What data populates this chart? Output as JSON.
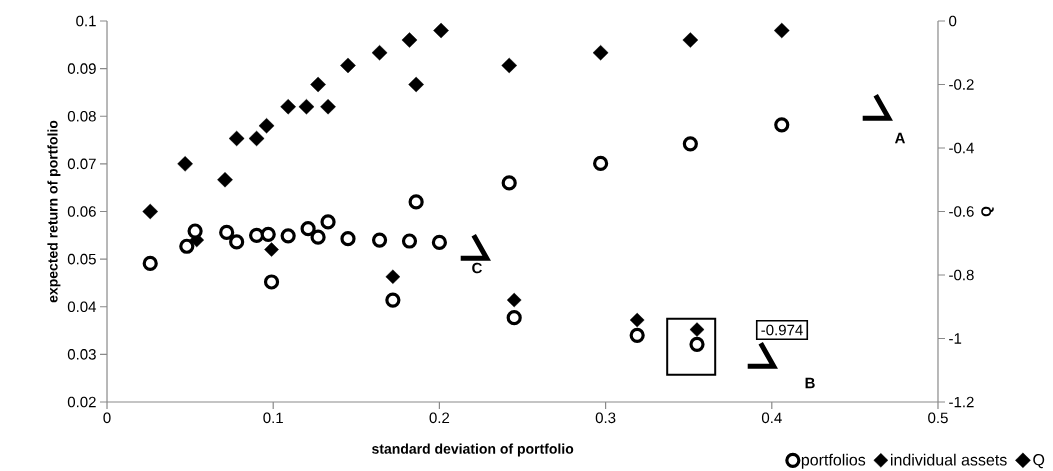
{
  "chart_data": {
    "type": "scatter",
    "xlabel": "standard deviation of portfolio",
    "ylabel": "expected return of portfolio",
    "y2label": "Q",
    "xlim": [
      0,
      0.5
    ],
    "xticks": [
      0,
      0.1,
      0.2,
      0.3,
      0.4,
      0.5
    ],
    "ylim": [
      0.02,
      0.1
    ],
    "yticks": [
      0.02,
      0.03,
      0.04,
      0.05,
      0.06,
      0.07,
      0.08,
      0.09,
      0.1
    ],
    "y2lim": [
      -1.2,
      0
    ],
    "y2ticks": [
      -1.2,
      -1,
      -0.8,
      -0.6,
      -0.4,
      -0.2,
      0
    ],
    "legend": "bottom right",
    "annotations": [
      "A",
      "B",
      "C",
      "-0.974"
    ],
    "series": [
      {
        "name": "portfolios",
        "color": "#000000",
        "marker": "circle",
        "x": [
          0.026,
          0.048,
          0.053,
          0.072,
          0.078,
          0.09,
          0.097,
          0.099,
          0.109,
          0.121,
          0.127,
          0.133,
          0.145,
          0.164,
          0.182,
          0.2,
          0.172,
          0.245,
          0.186,
          0.242,
          0.297,
          0.351,
          0.406,
          0.319,
          0.355
        ],
        "values": [
          0.0491,
          0.0527,
          0.0559,
          0.0556,
          0.0536,
          0.055,
          0.0552,
          0.0452,
          0.0549,
          0.0564,
          0.0546,
          0.0578,
          0.0543,
          0.054,
          0.0538,
          0.0535,
          0.0414,
          0.0377,
          0.062,
          0.066,
          0.0701,
          0.0742,
          0.0782,
          0.034,
          0.0321
        ]
      },
      {
        "name": "individual assets",
        "color": "#000000",
        "marker": "diamond",
        "x": [
          0.054,
          0.099,
          0.172,
          0.245,
          0.319,
          0.355
        ],
        "values": [
          0.054,
          0.052,
          0.0463,
          0.0414,
          0.0372,
          0.0352
        ]
      },
      {
        "name": "Q",
        "color": "#000000",
        "marker": "diamond",
        "axis": "y2",
        "x": [
          0.026,
          0.047,
          0.071,
          0.078,
          0.09,
          0.096,
          0.109,
          0.12,
          0.127,
          0.133,
          0.145,
          0.164,
          0.182,
          0.186,
          0.201,
          0.242,
          0.297,
          0.351,
          0.406
        ],
        "values": [
          -0.6,
          -0.45,
          -0.5,
          -0.37,
          -0.37,
          -0.33,
          -0.27,
          -0.27,
          -0.2,
          -0.27,
          -0.14,
          -0.1,
          -0.06,
          -0.2,
          -0.03,
          -0.14,
          -0.1,
          -0.06,
          -0.03
        ]
      }
    ]
  }
}
